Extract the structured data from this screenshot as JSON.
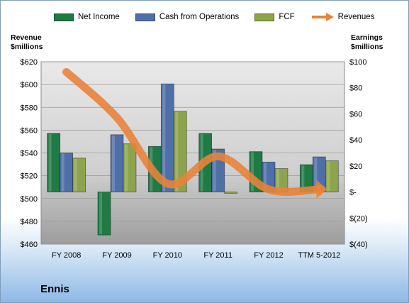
{
  "chart_data": {
    "type": "bar",
    "categories": [
      "FY 2008",
      "FY 2009",
      "FY 2010",
      "FY 2011",
      "FY 2012",
      "TTM 5-2012"
    ],
    "series": [
      {
        "name": "Net Income",
        "axis": "right",
        "color": "#1f7a45",
        "values": [
          45,
          -33,
          35,
          45,
          31,
          21
        ]
      },
      {
        "name": "Cash from Operations",
        "axis": "right",
        "color": "#4f6fa8",
        "values": [
          30,
          44,
          83,
          33,
          23,
          27
        ]
      },
      {
        "name": "FCF",
        "axis": "right",
        "color": "#8da44c",
        "values": [
          26,
          37,
          62,
          -1,
          18,
          24
        ]
      },
      {
        "name": "Revenues",
        "axis": "left",
        "type": "line",
        "color": "#e8833a",
        "values": [
          611,
          571,
          513,
          537,
          508,
          508
        ]
      }
    ],
    "left_axis": {
      "title_line1": "Revenue",
      "title_line2": "$millions",
      "ylim": [
        460,
        620
      ],
      "ticks": [
        620,
        600,
        580,
        560,
        540,
        520,
        500,
        480,
        460
      ],
      "tick_labels": [
        "$620",
        "$600",
        "$580",
        "$560",
        "$540",
        "$520",
        "$500",
        "$480",
        "$460"
      ]
    },
    "right_axis": {
      "title_line1": "Earnings",
      "title_line2": "$millions",
      "ylim": [
        -40,
        100
      ],
      "ticks": [
        100,
        80,
        60,
        40,
        20,
        0,
        -20,
        -40
      ],
      "tick_labels": [
        "$100",
        "$80",
        "$60",
        "$40",
        "$20",
        "$-",
        "$(20)",
        "$(40)"
      ]
    },
    "legend_position": "top",
    "grid": true,
    "company": "Ennis"
  }
}
